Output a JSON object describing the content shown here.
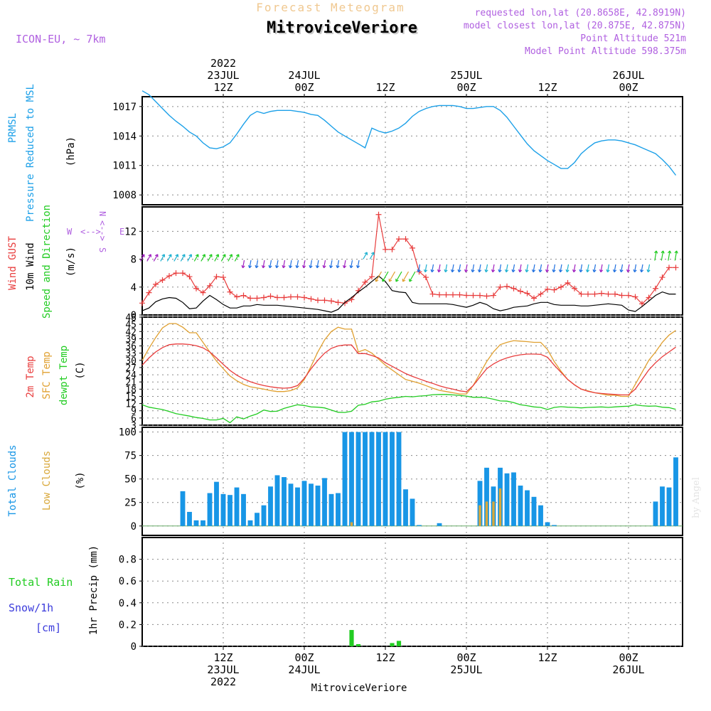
{
  "header": {
    "top_title": "Forecast Meteogram",
    "station": "MitroviceVeriore",
    "model": "ICON-EU, ~ 7km",
    "requested": "requested lon,lat (20.8658E, 42.8919N)",
    "closest": "model closest lon,lat (20.875E, 42.875N)",
    "altitude": "Point Altitude 521m",
    "model_altitude": "Model Point Altitude 598.375m",
    "footer_station": "MitroviceVeriore",
    "credit": "by Angel"
  },
  "colors": {
    "pressure": "#1ca0e8",
    "gust": "#e83c3c",
    "wind": "#000000",
    "sfc_temp": "#e0a030",
    "dewpt": "#22cc22",
    "total_clouds": "#1896e6",
    "low_clouds": "#d9a83a",
    "rain": "#22cc22",
    "snow": "#3c3cdc",
    "purple_text": "#b060e0",
    "top_title": "#f0c890"
  },
  "time_axis": {
    "top_year": "2022",
    "ticks": [
      {
        "h": 12,
        "top": [
          "23JUL",
          "12Z"
        ],
        "bottom": [
          "12Z",
          "23JUL",
          "2022"
        ]
      },
      {
        "h": 24,
        "top": [
          "24JUL",
          "00Z"
        ],
        "bottom": [
          "00Z",
          "24JUL"
        ]
      },
      {
        "h": 36,
        "top": [
          "12Z"
        ],
        "bottom": [
          "12Z"
        ]
      },
      {
        "h": 48,
        "top": [
          "25JUL",
          "00Z"
        ],
        "bottom": [
          "00Z",
          "25JUL"
        ]
      },
      {
        "h": 60,
        "top": [
          "12Z"
        ],
        "bottom": [
          "12Z"
        ]
      },
      {
        "h": 72,
        "top": [
          "26JUL",
          "00Z"
        ],
        "bottom": [
          "00Z",
          "26JUL"
        ]
      }
    ]
  },
  "chart_data": [
    {
      "type": "line",
      "panel": "pressure",
      "ylabels": [
        "PRMSL",
        "Pressure Reduced to MSL",
        "(hPa)"
      ],
      "ylim": [
        1007,
        1018
      ],
      "yticks": [
        1008,
        1011,
        1014,
        1017
      ],
      "x": [
        0,
        1,
        2,
        3,
        4,
        5,
        6,
        7,
        8,
        9,
        10,
        11,
        12,
        13,
        14,
        15,
        16,
        17,
        18,
        19,
        20,
        21,
        22,
        23,
        24,
        25,
        26,
        27,
        28,
        29,
        30,
        31,
        32,
        33,
        34,
        35,
        36,
        37,
        38,
        39,
        40,
        41,
        42,
        43,
        44,
        45,
        46,
        47,
        48,
        49,
        50,
        51,
        52,
        53,
        54,
        55,
        56,
        57,
        58,
        59,
        60,
        61,
        62,
        63,
        64,
        65,
        66,
        67,
        68,
        69,
        70,
        71,
        72,
        73,
        74,
        75,
        76,
        77,
        78,
        79
      ],
      "series": [
        {
          "values": [
            1018.6,
            1018.2,
            1017.5,
            1016.8,
            1016.1,
            1015.5,
            1015.0,
            1014.4,
            1014.0,
            1013.3,
            1012.8,
            1012.7,
            1012.9,
            1013.3,
            1014.2,
            1015.2,
            1016.1,
            1016.5,
            1016.3,
            1016.5,
            1016.6,
            1016.6,
            1016.6,
            1016.5,
            1016.4,
            1016.2,
            1016.1,
            1015.6,
            1015.0,
            1014.4,
            1014.0,
            1013.6,
            1013.2,
            1012.8,
            1014.8,
            1014.5,
            1014.3,
            1014.5,
            1014.8,
            1015.3,
            1016.0,
            1016.5,
            1016.8,
            1017.0,
            1017.1,
            1017.1,
            1017.1,
            1017.0,
            1016.8,
            1016.8,
            1016.9,
            1017.0,
            1017.0,
            1016.6,
            1015.9,
            1015.0,
            1014.1,
            1013.2,
            1012.5,
            1012.0,
            1011.5,
            1011.1,
            1010.7,
            1010.7,
            1011.3,
            1012.2,
            1012.8,
            1013.3,
            1013.5,
            1013.6,
            1013.6,
            1013.5,
            1013.3,
            1013.1,
            1012.8,
            1012.5,
            1012.2,
            1011.6,
            1010.9,
            1010.0
          ]
        }
      ]
    },
    {
      "type": "line",
      "panel": "wind",
      "ylabels": [
        "Wind GUST",
        "10m Wind",
        "Speed and Direction",
        "(m/s)"
      ],
      "compass": {
        "n": "N",
        "s": "S",
        "w": "W",
        "e": "E"
      },
      "ylim": [
        0,
        15.5
      ],
      "yticks": [
        0,
        4,
        8,
        12
      ],
      "x": [
        0,
        1,
        2,
        3,
        4,
        5,
        6,
        7,
        8,
        9,
        10,
        11,
        12,
        13,
        14,
        15,
        16,
        17,
        18,
        19,
        20,
        21,
        22,
        23,
        24,
        25,
        26,
        27,
        28,
        29,
        30,
        31,
        32,
        33,
        34,
        35,
        36,
        37,
        38,
        39,
        40,
        41,
        42,
        43,
        44,
        45,
        46,
        47,
        48,
        49,
        50,
        51,
        52,
        53,
        54,
        55,
        56,
        57,
        58,
        59,
        60,
        61,
        62,
        63,
        64,
        65,
        66,
        67,
        68,
        69,
        70,
        71,
        72,
        73,
        74,
        75,
        76,
        77,
        78,
        79
      ],
      "series": [
        {
          "name": "Wind GUST",
          "values": [
            1.7,
            3.2,
            4.4,
            5.0,
            5.6,
            6.0,
            6.0,
            5.5,
            3.8,
            3.2,
            4.2,
            5.5,
            5.4,
            3.3,
            2.6,
            2.8,
            2.4,
            2.4,
            2.5,
            2.7,
            2.5,
            2.5,
            2.6,
            2.6,
            2.5,
            2.3,
            2.1,
            2.1,
            2.0,
            1.8,
            1.7,
            2.2,
            3.5,
            4.7,
            5.5,
            14.4,
            9.4,
            9.4,
            10.9,
            10.9,
            9.6,
            6.2,
            5.4,
            3.0,
            2.9,
            2.9,
            2.9,
            2.9,
            2.8,
            2.8,
            2.8,
            2.7,
            2.8,
            4.0,
            4.1,
            3.8,
            3.4,
            3.1,
            2.4,
            3.0,
            3.7,
            3.6,
            4.0,
            4.6,
            3.8,
            3.0,
            3.0,
            3.0,
            3.1,
            3.0,
            3.0,
            2.8,
            2.8,
            2.6,
            1.6,
            2.5,
            3.8,
            5.4,
            6.8,
            6.8
          ]
        },
        {
          "name": "10m Wind",
          "values": [
            0.6,
            1.0,
            1.9,
            2.3,
            2.5,
            2.4,
            1.8,
            0.9,
            1.0,
            2.0,
            2.8,
            2.2,
            1.5,
            1.0,
            1.0,
            1.3,
            1.3,
            1.5,
            1.4,
            1.4,
            1.4,
            1.3,
            1.2,
            1.1,
            1.0,
            0.9,
            0.8,
            0.6,
            0.4,
            0.8,
            1.8,
            2.5,
            3.3,
            4.0,
            4.8,
            5.6,
            4.8,
            3.5,
            3.3,
            3.2,
            1.8,
            1.6,
            1.6,
            1.6,
            1.6,
            1.6,
            1.5,
            1.3,
            1.1,
            1.4,
            1.8,
            1.5,
            0.9,
            0.6,
            0.8,
            1.1,
            1.2,
            1.3,
            1.6,
            1.8,
            1.8,
            1.5,
            1.4,
            1.4,
            1.4,
            1.3,
            1.3,
            1.4,
            1.5,
            1.6,
            1.5,
            1.4,
            0.7,
            0.5,
            1.2,
            2.0,
            2.8,
            3.3,
            3.0,
            3.0
          ]
        }
      ]
    },
    {
      "type": "line",
      "panel": "temperature",
      "ylabels": [
        "2m Temp",
        "SFC Temp",
        "dewpt Temp",
        "(C)"
      ],
      "ylim": [
        3,
        48
      ],
      "yticks": [
        3,
        6,
        9,
        12,
        15,
        18,
        21,
        24,
        27,
        30,
        33,
        36,
        39,
        42,
        45,
        48
      ],
      "x": [
        0,
        1,
        2,
        3,
        4,
        5,
        6,
        7,
        8,
        9,
        10,
        11,
        12,
        13,
        14,
        15,
        16,
        17,
        18,
        19,
        20,
        21,
        22,
        23,
        24,
        25,
        26,
        27,
        28,
        29,
        30,
        31,
        32,
        33,
        34,
        35,
        36,
        37,
        38,
        39,
        40,
        41,
        42,
        43,
        44,
        45,
        46,
        47,
        48,
        49,
        50,
        51,
        52,
        53,
        54,
        55,
        56,
        57,
        58,
        59,
        60,
        61,
        62,
        63,
        64,
        65,
        66,
        67,
        68,
        69,
        70,
        71,
        72,
        73,
        74,
        75,
        76,
        77,
        78,
        79
      ],
      "series": [
        {
          "name": "2m Temp",
          "values": [
            28,
            31,
            33.5,
            35.3,
            36.5,
            36.8,
            36.8,
            36.6,
            36.1,
            35.2,
            33.5,
            31,
            28.3,
            25.8,
            23.8,
            22.3,
            21.1,
            20.2,
            19.5,
            19.0,
            18.6,
            18.4,
            18.6,
            19.5,
            22.5,
            26.5,
            30,
            33,
            35,
            36,
            36.4,
            36.4,
            32.8,
            32.8,
            32,
            31,
            29,
            27.5,
            26,
            24.5,
            23.3,
            22.3,
            21.3,
            20.4,
            19.4,
            18.6,
            18.0,
            17.3,
            16.9,
            19.5,
            23,
            26.5,
            28.5,
            30.0,
            31.0,
            31.8,
            32.3,
            32.6,
            32.6,
            32.5,
            31.3,
            28.0,
            25.0,
            22.0,
            19.8,
            18.0,
            17.1,
            16.5,
            16.2,
            16.0,
            15.8,
            15.6,
            15.6,
            18,
            22,
            26,
            29,
            31.5,
            33.5,
            35.5
          ]
        },
        {
          "name": "SFC Temp",
          "values": [
            30,
            35,
            39.5,
            43.5,
            45.3,
            45.3,
            43.8,
            41.5,
            41.5,
            37.5,
            33.5,
            29.7,
            26.5,
            23.5,
            21.5,
            20.0,
            19.0,
            18.5,
            18.0,
            17.4,
            17.0,
            17.0,
            17.4,
            18.5,
            22.0,
            27.5,
            33.5,
            38.5,
            42.0,
            43.8,
            43.0,
            43.0,
            33.5,
            34.5,
            33.0,
            30.5,
            28.0,
            26.0,
            24.0,
            22.0,
            21.3,
            20.5,
            19.5,
            18.4,
            17.5,
            17.0,
            16.5,
            16.0,
            16.0,
            19.5,
            24.5,
            29.5,
            33.5,
            36.5,
            37.5,
            38.2,
            38.0,
            37.8,
            37.5,
            37.5,
            34.5,
            29.5,
            25.5,
            22.0,
            19.8,
            18.0,
            17.3,
            16.5,
            16.0,
            15.5,
            15.5,
            15.0,
            15.0,
            20,
            25,
            30,
            33.5,
            37.5,
            40.5,
            42.5
          ]
        },
        {
          "name": "dewpt Temp",
          "values": [
            11.5,
            10.5,
            10.0,
            9.5,
            8.7,
            7.8,
            7.3,
            6.8,
            6.2,
            5.8,
            5.2,
            5.2,
            5.8,
            4.0,
            6.5,
            5.6,
            6.8,
            7.7,
            9.3,
            8.7,
            8.8,
            10.0,
            10.8,
            11.5,
            11.2,
            10.6,
            10.5,
            10.2,
            9.3,
            8.4,
            8.3,
            8.8,
            11.3,
            11.7,
            12.7,
            13.0,
            13.8,
            14.3,
            14.6,
            15.0,
            14.8,
            15.1,
            15.3,
            15.7,
            15.8,
            15.8,
            15.6,
            15.4,
            15.1,
            14.6,
            14.6,
            14.4,
            13.8,
            13.1,
            13.0,
            12.4,
            11.5,
            11.1,
            10.6,
            10.4,
            9.5,
            10.4,
            10.7,
            10.5,
            10.4,
            10.2,
            10.4,
            10.5,
            10.6,
            10.4,
            10.6,
            10.8,
            10.9,
            11.5,
            11.1,
            10.9,
            11.0,
            10.5,
            10.3,
            9.6
          ]
        }
      ]
    },
    {
      "type": "bar",
      "panel": "clouds",
      "ylabels": [
        "Total Clouds",
        "Low Clouds",
        "(%)"
      ],
      "ylim": [
        -10,
        105
      ],
      "yticks": [
        0,
        25,
        50,
        75,
        100
      ],
      "x": [
        0,
        1,
        2,
        3,
        4,
        5,
        6,
        7,
        8,
        9,
        10,
        11,
        12,
        13,
        14,
        15,
        16,
        17,
        18,
        19,
        20,
        21,
        22,
        23,
        24,
        25,
        26,
        27,
        28,
        29,
        30,
        31,
        32,
        33,
        34,
        35,
        36,
        37,
        38,
        39,
        40,
        41,
        42,
        43,
        44,
        45,
        46,
        47,
        48,
        49,
        50,
        51,
        52,
        53,
        54,
        55,
        56,
        57,
        58,
        59,
        60,
        61,
        62,
        63,
        64,
        65,
        66,
        67,
        68,
        69,
        70,
        71,
        72,
        73,
        74,
        75,
        76,
        77,
        78,
        79
      ],
      "series": [
        {
          "name": "Total Clouds",
          "values": [
            0,
            0,
            0,
            0,
            0,
            0,
            37,
            15,
            6,
            6,
            35,
            47,
            34,
            33,
            41,
            34,
            6,
            14,
            22,
            42,
            54,
            52,
            45,
            41,
            48,
            45,
            43,
            51,
            34,
            35,
            100,
            100,
            100,
            100,
            100,
            100,
            100,
            100,
            100,
            39,
            29,
            1,
            0,
            0,
            3,
            0,
            0,
            0,
            0,
            0,
            48,
            62,
            42,
            62,
            56,
            57,
            43,
            38,
            31,
            22,
            4,
            1,
            0,
            0,
            0,
            0,
            0,
            0,
            0,
            0,
            0,
            0,
            0,
            0,
            0,
            0,
            26,
            42,
            41,
            73
          ]
        },
        {
          "name": "Low Clouds",
          "values": [
            0,
            0,
            0,
            0,
            0,
            0,
            0,
            0,
            0,
            0,
            0,
            0,
            0,
            0,
            0,
            0,
            0,
            0,
            0,
            0,
            0,
            0,
            0,
            0,
            0,
            0,
            0,
            0,
            0,
            0,
            0,
            4,
            0,
            0,
            0,
            0,
            0,
            0,
            0,
            0,
            0,
            0,
            0,
            0,
            0,
            0,
            0,
            0,
            0,
            0,
            22,
            26,
            26,
            40,
            0,
            0,
            0,
            0,
            0,
            0,
            0,
            0,
            0,
            0,
            0,
            0,
            0,
            0,
            0,
            0,
            0,
            0,
            0,
            0,
            0,
            0,
            0,
            0,
            0,
            0
          ]
        }
      ]
    },
    {
      "type": "bar",
      "panel": "precip",
      "ylabels": [
        "1hr Precip (mm)"
      ],
      "side_labels": {
        "rain": "Total Rain",
        "snow": "Snow/1h",
        "cm": "[cm]"
      },
      "ylim": [
        0,
        1.0
      ],
      "yticks": [
        0,
        0.2,
        0.4,
        0.6,
        0.8
      ],
      "ytick_labels": [
        "0",
        "0.2",
        "0.4",
        "0.6",
        "0.8"
      ],
      "x": [
        31,
        32,
        37,
        38
      ],
      "series": [
        {
          "name": "Total Rain",
          "values": [
            0.15,
            0.02,
            0.03,
            0.05
          ]
        }
      ]
    }
  ]
}
